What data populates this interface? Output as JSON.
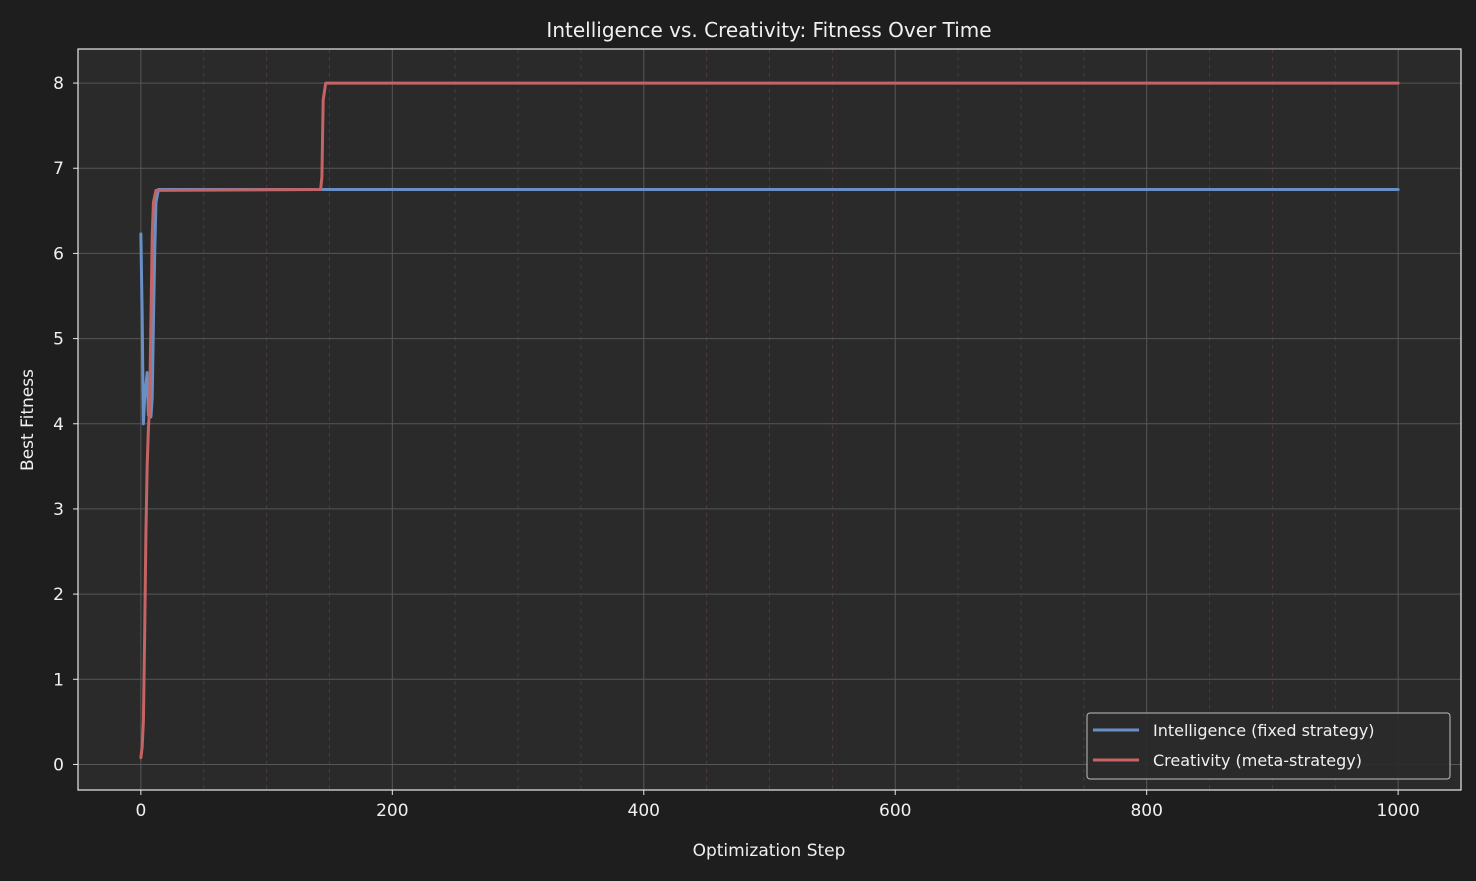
{
  "chart_data": {
    "type": "line",
    "title": "Intelligence vs. Creativity: Fitness Over Time",
    "xlabel": "Optimization Step",
    "ylabel": "Best Fitness",
    "xlim": [
      -50,
      1050
    ],
    "ylim": [
      -0.3,
      8.4
    ],
    "xticks": [
      0,
      200,
      400,
      600,
      800,
      1000
    ],
    "yticks": [
      0,
      1,
      2,
      3,
      4,
      5,
      6,
      7,
      8
    ],
    "grid": true,
    "legend_position": "bottom-right",
    "series": [
      {
        "name": "Intelligence (fixed strategy)",
        "color": "#6a8fc4",
        "points": [
          [
            0,
            6.23
          ],
          [
            1,
            5.3
          ],
          [
            2,
            4.0
          ],
          [
            3,
            4.3
          ],
          [
            5,
            4.6
          ],
          [
            6,
            4.1
          ],
          [
            8,
            4.08
          ],
          [
            9,
            4.3
          ],
          [
            10,
            5.2
          ],
          [
            11,
            6.0
          ],
          [
            12,
            6.6
          ],
          [
            14,
            6.75
          ],
          [
            1000,
            6.75
          ]
        ]
      },
      {
        "name": "Creativity (meta-strategy)",
        "color": "#c46464",
        "points": [
          [
            0,
            0.08
          ],
          [
            1,
            0.2
          ],
          [
            2,
            0.5
          ],
          [
            3,
            1.5
          ],
          [
            4,
            2.7
          ],
          [
            5,
            3.5
          ],
          [
            6,
            3.95
          ],
          [
            7,
            4.2
          ],
          [
            8,
            5.2
          ],
          [
            9,
            6.2
          ],
          [
            10,
            6.6
          ],
          [
            12,
            6.74
          ],
          [
            143,
            6.75
          ],
          [
            144,
            6.9
          ],
          [
            145,
            7.8
          ],
          [
            147,
            8.0
          ],
          [
            1000,
            8.0
          ]
        ]
      }
    ]
  },
  "colors": {
    "figure_background": "#1e1e1e",
    "axes_background": "#2a2a2a",
    "text": "#f0f0f0",
    "grid_major": "#555555",
    "grid_minor": "#4a3535"
  }
}
